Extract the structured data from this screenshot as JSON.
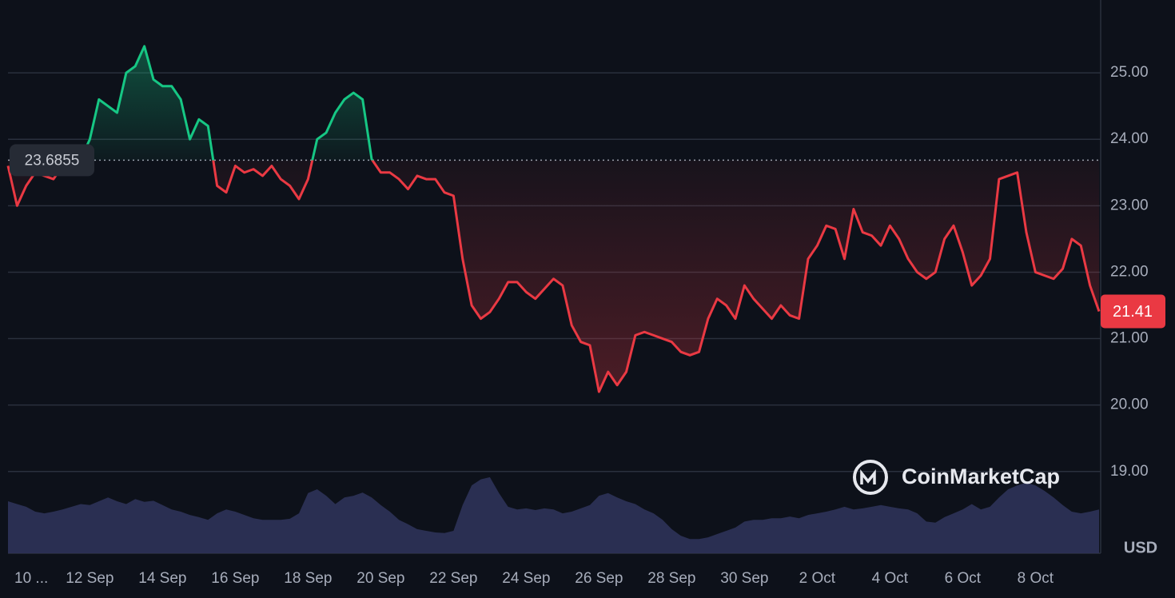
{
  "chart_data": {
    "type": "line",
    "categories": [
      null,
      "10 ...",
      null,
      null,
      null,
      null,
      null,
      null,
      null,
      "12 Sep",
      null,
      null,
      null,
      null,
      null,
      null,
      null,
      "14 Sep",
      null,
      null,
      null,
      null,
      null,
      null,
      null,
      "16 Sep",
      null,
      null,
      null,
      null,
      null,
      null,
      null,
      "18 Sep",
      null,
      null,
      null,
      null,
      null,
      null,
      null,
      "20 Sep",
      null,
      null,
      null,
      null,
      null,
      null,
      null,
      "22 Sep",
      null,
      null,
      null,
      null,
      null,
      null,
      null,
      "24 Sep",
      null,
      null,
      null,
      null,
      null,
      null,
      null,
      "26 Sep",
      null,
      null,
      null,
      null,
      null,
      null,
      null,
      "28 Sep",
      null,
      null,
      null,
      null,
      null,
      null,
      null,
      "30 Sep",
      null,
      null,
      null,
      null,
      null,
      null,
      null,
      "2 Oct",
      null,
      null,
      null,
      null,
      null,
      null,
      null,
      "4 Oct",
      null,
      null,
      null,
      null,
      null,
      null,
      null,
      "6 Oct",
      null,
      null,
      null,
      null,
      null,
      null,
      null,
      "8 Oct",
      null,
      null,
      null,
      null,
      null,
      null,
      null
    ],
    "series": [
      {
        "color": "#ea3943",
        "values": [
          23.6,
          23.0,
          23.3,
          23.5,
          23.45,
          23.4,
          23.6,
          23.75,
          23.7,
          24.0,
          24.6,
          24.5,
          24.4,
          25.0,
          25.1,
          25.4,
          24.9,
          24.8,
          24.8,
          24.6,
          24.0,
          24.3,
          24.2,
          23.3,
          23.2,
          23.6,
          23.5,
          23.55,
          23.45,
          23.6,
          23.4,
          23.3,
          23.1,
          23.4,
          24.0,
          24.1,
          24.4,
          24.6,
          24.7,
          24.6,
          23.7,
          23.5,
          23.5,
          23.4,
          23.25,
          23.45,
          23.4,
          23.4,
          23.2,
          23.15,
          22.2,
          21.5,
          21.3,
          21.4,
          21.6,
          21.85,
          21.85,
          21.7,
          21.6,
          21.75,
          21.9,
          21.8,
          21.2,
          20.95,
          20.9,
          20.2,
          20.5,
          20.3,
          20.5,
          21.05,
          21.1,
          21.05,
          21.0,
          20.95,
          20.8,
          20.75,
          20.8,
          21.3,
          21.6,
          21.5,
          21.3,
          21.8,
          21.6,
          21.45,
          21.3,
          21.5,
          21.35,
          21.3,
          22.2,
          22.4,
          22.7,
          22.65,
          22.2,
          22.95,
          22.6,
          22.55,
          22.4,
          22.7,
          22.5,
          22.2,
          22.0,
          21.9,
          22.0,
          22.5,
          22.7,
          22.3,
          21.8,
          21.95,
          22.2,
          23.4,
          23.45,
          23.5,
          22.6,
          22.0,
          21.95,
          21.9,
          22.05,
          22.5,
          22.4,
          21.8,
          21.41
        ]
      },
      {
        "axis": "y2",
        "color": "#2c3255",
        "values": [
          0.95,
          0.9,
          0.85,
          0.76,
          0.73,
          0.76,
          0.8,
          0.85,
          0.9,
          0.88,
          0.95,
          1.02,
          0.95,
          0.9,
          0.99,
          0.94,
          0.96,
          0.88,
          0.8,
          0.76,
          0.7,
          0.66,
          0.61,
          0.73,
          0.8,
          0.76,
          0.7,
          0.64,
          0.61,
          0.61,
          0.61,
          0.63,
          0.73,
          1.1,
          1.17,
          1.05,
          0.9,
          1.02,
          1.05,
          1.11,
          1.02,
          0.88,
          0.76,
          0.61,
          0.53,
          0.44,
          0.41,
          0.38,
          0.37,
          0.41,
          0.88,
          1.24,
          1.35,
          1.39,
          1.1,
          0.85,
          0.8,
          0.82,
          0.79,
          0.82,
          0.8,
          0.73,
          0.76,
          0.82,
          0.88,
          1.05,
          1.1,
          1.02,
          0.95,
          0.9,
          0.8,
          0.73,
          0.61,
          0.44,
          0.32,
          0.26,
          0.26,
          0.29,
          0.35,
          0.41,
          0.47,
          0.58,
          0.61,
          0.61,
          0.64,
          0.64,
          0.67,
          0.64,
          0.7,
          0.73,
          0.76,
          0.8,
          0.85,
          0.8,
          0.82,
          0.85,
          0.88,
          0.85,
          0.82,
          0.8,
          0.73,
          0.58,
          0.56,
          0.66,
          0.73,
          0.8,
          0.9,
          0.8,
          0.85,
          1.02,
          1.17,
          1.24,
          1.29,
          1.24,
          1.14,
          1.02,
          0.88,
          0.76,
          0.73,
          0.76,
          0.8
        ]
      }
    ],
    "above_color": "#16c784",
    "baseline": 23.6855,
    "ylim": [
      17.77,
      26
    ],
    "yticks": [
      {
        "value": 19,
        "label": "19.00"
      },
      {
        "value": 20,
        "label": "20.00"
      },
      {
        "value": 21,
        "label": "21.00"
      },
      {
        "value": 22,
        "label": "22.00"
      },
      {
        "value": 23,
        "label": "23.00"
      },
      {
        "value": 24,
        "label": "24.00"
      },
      {
        "value": 25,
        "label": "25.00"
      }
    ],
    "y2lim": [
      0,
      10
    ],
    "grid": true,
    "y_unit": "USD",
    "watermark": "CoinMarketCap"
  }
}
